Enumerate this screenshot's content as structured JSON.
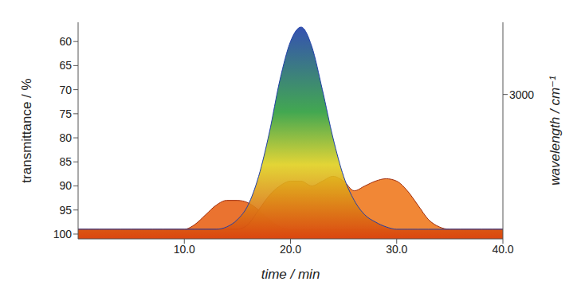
{
  "chart_data": {
    "type": "area",
    "x_label": "time / min",
    "y_label": "transmittance / %",
    "y2_label": "wavelength / cm⁻¹",
    "x": [
      0,
      1,
      2,
      3,
      4,
      5,
      6,
      7,
      8,
      9,
      10,
      11,
      12,
      13,
      14,
      15,
      16,
      17,
      18,
      19,
      20,
      21,
      22,
      23,
      24,
      25,
      26,
      27,
      28,
      29,
      30,
      31,
      32,
      33,
      34,
      35,
      36,
      37,
      38,
      39,
      40
    ],
    "series": [
      {
        "color": "#e8641a",
        "values": [
          99,
          99,
          99,
          99,
          99,
          99,
          99,
          99,
          99,
          99,
          99,
          98,
          96,
          94,
          93,
          93,
          93.5,
          95,
          97,
          98.5,
          99,
          99,
          99,
          99,
          99,
          99,
          99,
          99,
          99,
          99,
          99,
          99,
          99,
          99,
          99,
          99,
          99,
          99,
          99,
          99,
          99
        ]
      },
      {
        "color": "#f07a20",
        "values": [
          99,
          99,
          99,
          99,
          99,
          99,
          99,
          99,
          99,
          99,
          99,
          99,
          99,
          99,
          99,
          99,
          98,
          95,
          92,
          90,
          89,
          89,
          90,
          89,
          88,
          89,
          91,
          90,
          89,
          88.5,
          89,
          91,
          94,
          97,
          98.5,
          99,
          99,
          99,
          99,
          99,
          99
        ]
      },
      {
        "color": "#2e9e3e",
        "values": [
          99,
          99,
          99,
          99,
          99,
          99,
          99,
          99,
          99,
          99,
          99,
          99,
          99,
          99,
          98.5,
          97,
          94,
          88,
          79,
          68,
          60,
          57,
          61,
          70,
          80,
          88,
          93,
          96,
          97.5,
          98.5,
          99,
          99,
          99,
          99,
          99,
          99,
          99,
          99,
          99,
          99,
          99
        ]
      }
    ],
    "xlim": [
      0,
      40
    ],
    "xticks": [
      {
        "value": 10,
        "label": "10.0"
      },
      {
        "value": 20,
        "label": "20.0"
      },
      {
        "value": 30,
        "label": "30.0"
      },
      {
        "value": 40,
        "label": "40.0"
      }
    ],
    "ylim": [
      56,
      101
    ],
    "yticks": [
      60,
      65,
      70,
      75,
      80,
      85,
      90,
      95,
      100
    ],
    "y2lim": [
      1000,
      4000
    ],
    "y2ticks": [
      3000
    ],
    "grid": false
  }
}
